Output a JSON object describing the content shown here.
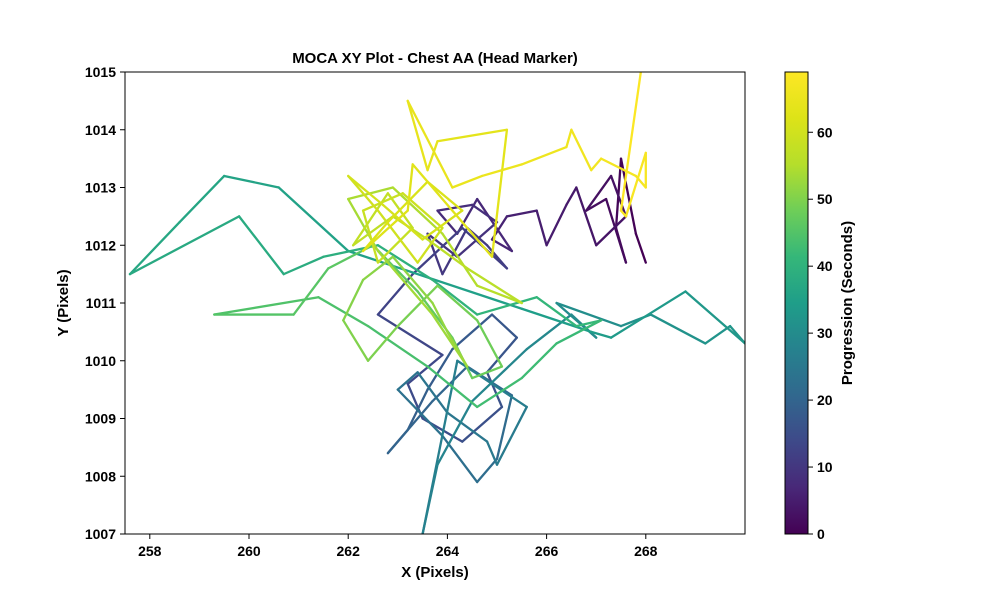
{
  "chart_data": {
    "type": "line",
    "title": "MOCA XY Plot - Chest AA (Head Marker)",
    "xlabel": "X (Pixels)",
    "ylabel": "Y (Pixels)",
    "xlim": [
      257.5,
      270.0
    ],
    "ylim": [
      1007,
      1015
    ],
    "xticks": [
      258,
      260,
      262,
      264,
      266,
      268
    ],
    "yticks": [
      1007,
      1008,
      1009,
      1010,
      1011,
      1012,
      1013,
      1014,
      1015
    ],
    "grid": false,
    "colormap": "viridis",
    "colorbar": {
      "label": "Progression (Seconds)",
      "range": [
        0,
        69
      ],
      "ticks": [
        0,
        10,
        20,
        30,
        40,
        50,
        60
      ]
    },
    "series": [
      {
        "t_range": [
          0,
          12
        ],
        "x": [
          268.0,
          267.8,
          267.5,
          267.4,
          267.6,
          267.2,
          266.8,
          267.3,
          267.6,
          267.0,
          266.6,
          266.4,
          266.0,
          265.8,
          265.2,
          264.9,
          265.3,
          264.6,
          264.2,
          263.8,
          264.5,
          265.0,
          264.2,
          263.6,
          263.9,
          264.4,
          264.8,
          265.2,
          264.3
        ],
        "y": [
          1011.7,
          1012.2,
          1013.5,
          1012.3,
          1011.7,
          1012.8,
          1012.6,
          1013.2,
          1012.5,
          1012.0,
          1013.0,
          1012.7,
          1012.0,
          1012.6,
          1012.5,
          1012.1,
          1011.9,
          1012.8,
          1012.2,
          1012.6,
          1012.7,
          1012.4,
          1011.8,
          1012.2,
          1011.5,
          1012.3,
          1012.0,
          1011.6,
          1012.3
        ]
      },
      {
        "t_range": [
          12,
          28
        ],
        "x": [
          264.3,
          263.3,
          262.6,
          263.9,
          263.2,
          263.5,
          264.3,
          265.1,
          264.8,
          265.4,
          264.9,
          264.1,
          263.6,
          263.2,
          262.8,
          263.7,
          264.4,
          265.3,
          265.0,
          264.6,
          263.9,
          263.0,
          263.4,
          264.0,
          264.8,
          265.0,
          265.6,
          264.2,
          263.5,
          263.8
        ],
        "y": [
          1012.3,
          1011.5,
          1010.8,
          1010.1,
          1009.6,
          1009.0,
          1008.6,
          1009.2,
          1009.8,
          1010.4,
          1010.8,
          1010.2,
          1009.5,
          1008.8,
          1008.4,
          1009.3,
          1009.9,
          1009.4,
          1008.3,
          1007.9,
          1008.7,
          1009.5,
          1009.8,
          1009.1,
          1008.6,
          1008.2,
          1009.2,
          1010.0,
          1007.0,
          1008.2
        ]
      },
      {
        "t_range": [
          28,
          42
        ],
        "x": [
          263.8,
          264.5,
          265.6,
          266.5,
          267.0,
          266.2,
          267.5,
          268.1,
          269.2,
          269.7,
          270.0,
          268.8,
          267.3,
          266.9,
          265.5,
          262.0,
          260.6,
          259.5,
          258.6,
          257.6,
          259.8,
          260.7,
          261.5,
          262.6,
          263.7,
          264.6,
          265.8,
          266.6,
          267.1
        ],
        "y": [
          1008.2,
          1009.3,
          1010.2,
          1010.8,
          1010.4,
          1011.0,
          1010.6,
          1010.8,
          1010.3,
          1010.6,
          1010.3,
          1011.2,
          1010.4,
          1010.5,
          1010.9,
          1011.9,
          1013.0,
          1013.2,
          1012.4,
          1011.5,
          1012.5,
          1011.5,
          1011.8,
          1012.0,
          1011.4,
          1010.8,
          1011.1,
          1010.6,
          1010.7
        ]
      },
      {
        "t_range": [
          42,
          56
        ],
        "x": [
          267.1,
          266.2,
          265.5,
          264.6,
          263.6,
          262.4,
          261.4,
          259.3,
          260.9,
          261.6,
          262.5,
          263.4,
          264.1,
          264.5,
          265.1,
          264.6,
          263.8,
          263.0,
          262.4,
          261.9,
          262.3,
          262.9,
          263.7,
          264.0,
          264.4,
          263.7,
          262.6,
          262.0,
          262.9,
          263.9,
          264.6,
          265.5
        ],
        "y": [
          1010.7,
          1010.3,
          1009.7,
          1009.2,
          1009.9,
          1010.6,
          1011.1,
          1010.8,
          1010.8,
          1011.6,
          1012.0,
          1011.2,
          1010.4,
          1009.7,
          1009.9,
          1010.7,
          1011.3,
          1010.6,
          1010.0,
          1010.7,
          1011.4,
          1011.8,
          1011.0,
          1010.5,
          1009.9,
          1010.8,
          1011.9,
          1012.8,
          1013.0,
          1012.2,
          1011.3,
          1011.0
        ]
      },
      {
        "t_range": [
          56,
          69
        ],
        "x": [
          265.5,
          264.4,
          263.6,
          262.9,
          262.1,
          262.8,
          263.3,
          262.6,
          262.3,
          263.1,
          263.9,
          263.4,
          262.6,
          262.0,
          262.7,
          263.5,
          264.3,
          263.6,
          262.8,
          262.3,
          263.2,
          263.3,
          264.9,
          265.2,
          263.8,
          263.6,
          263.2,
          264.1,
          264.7,
          265.5,
          266.4,
          266.5,
          266.9,
          267.1,
          267.8,
          268.0,
          268.0,
          267.6,
          267.5,
          267.9
        ],
        "y": [
          1011.0,
          1011.6,
          1012.1,
          1012.5,
          1012.0,
          1012.9,
          1012.3,
          1011.7,
          1012.6,
          1012.9,
          1012.3,
          1011.7,
          1012.6,
          1013.2,
          1012.7,
          1012.1,
          1012.6,
          1013.1,
          1012.4,
          1011.9,
          1012.6,
          1013.4,
          1011.8,
          1014.0,
          1013.8,
          1013.3,
          1014.5,
          1013.0,
          1013.2,
          1013.4,
          1013.7,
          1014.0,
          1013.3,
          1013.5,
          1013.2,
          1013.0,
          1013.6,
          1012.5,
          1012.6,
          1015.0
        ]
      }
    ]
  }
}
